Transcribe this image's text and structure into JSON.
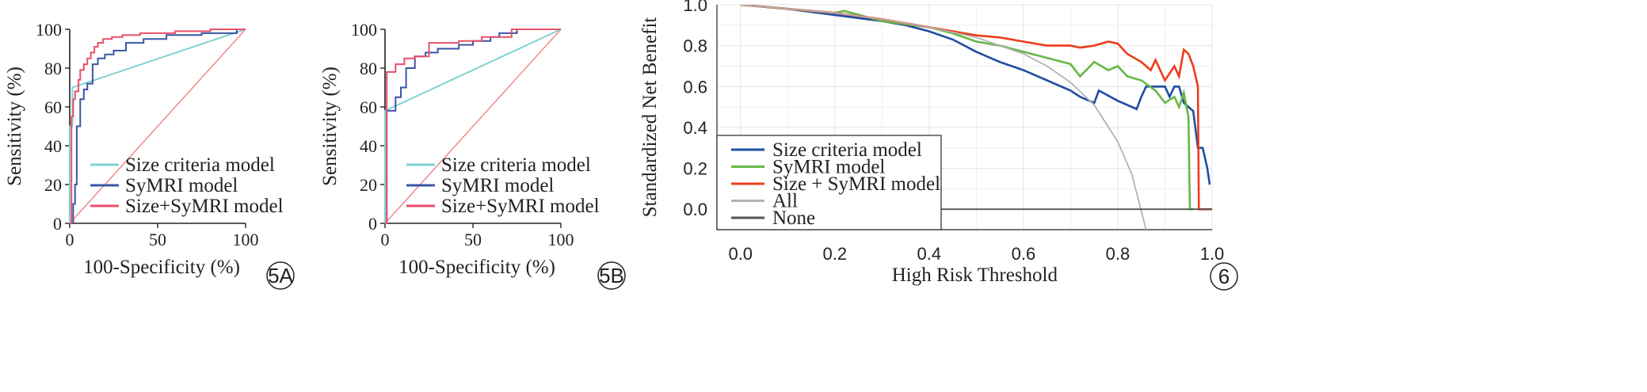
{
  "chart_data": [
    {
      "type": "line",
      "panel_label": "5A",
      "xlabel": "100-Specificity (%)",
      "ylabel": "Sensitivity (%)",
      "xlim": [
        0,
        100
      ],
      "ylim": [
        0,
        100
      ],
      "xticks": [
        "0",
        "50",
        "100"
      ],
      "yticks": [
        "0",
        "20",
        "40",
        "60",
        "80",
        "100"
      ],
      "legend_position": "bottom-right",
      "colors": {
        "reference": "#f08a8a"
      },
      "series": [
        {
          "name": "Size criteria model",
          "color": "#7fd3d3",
          "x": [
            0,
            0,
            1.5,
            1.5,
            100
          ],
          "y": [
            0,
            50,
            50,
            70,
            100
          ],
          "step": false
        },
        {
          "name": "SyMRI model",
          "color": "#3a56a6",
          "x": [
            0,
            2,
            2,
            3,
            3,
            4,
            4,
            6,
            6,
            8,
            8,
            10,
            10,
            13,
            13,
            16,
            16,
            20,
            20,
            25,
            25,
            32,
            32,
            42,
            42,
            55,
            55,
            75,
            75,
            95,
            95,
            100
          ],
          "y": [
            0,
            0,
            10,
            10,
            20,
            20,
            50,
            50,
            64,
            64,
            69,
            69,
            72,
            72,
            82,
            82,
            85,
            85,
            87,
            87,
            89,
            89,
            93,
            93,
            95,
            95,
            97,
            97,
            98,
            98,
            100,
            100
          ],
          "step": true
        },
        {
          "name": "Size+SyMRI model",
          "color": "#e8506a",
          "x": [
            0,
            1,
            1,
            2,
            2,
            3,
            3,
            5,
            5,
            6,
            6,
            8,
            8,
            10,
            10,
            12,
            12,
            14,
            14,
            16,
            16,
            19,
            19,
            24,
            24,
            30,
            30,
            40,
            40,
            60,
            60,
            80,
            80,
            100
          ],
          "y": [
            0,
            0,
            55,
            55,
            64,
            64,
            68,
            68,
            74,
            74,
            79,
            79,
            82,
            82,
            85,
            85,
            88,
            88,
            91,
            91,
            93,
            93,
            95,
            95,
            96,
            96,
            97,
            97,
            98,
            98,
            99,
            99,
            100,
            100
          ],
          "step": true
        }
      ]
    },
    {
      "type": "line",
      "panel_label": "5B",
      "xlabel": "100-Specificity (%)",
      "ylabel": "Sensitivity (%)",
      "xlim": [
        0,
        100
      ],
      "ylim": [
        0,
        100
      ],
      "xticks": [
        "0",
        "50",
        "100"
      ],
      "yticks": [
        "0",
        "20",
        "40",
        "60",
        "80",
        "100"
      ],
      "legend_position": "bottom-right",
      "colors": {
        "reference": "#f08a8a"
      },
      "series": [
        {
          "name": "Size criteria model",
          "color": "#7fd3d3",
          "x": [
            0,
            0,
            100
          ],
          "y": [
            0,
            58,
            100
          ],
          "step": false
        },
        {
          "name": "SyMRI model",
          "color": "#3a56a6",
          "x": [
            0,
            1,
            1,
            6,
            6,
            9,
            9,
            12,
            12,
            17,
            17,
            23,
            23,
            30,
            30,
            42,
            42,
            50,
            50,
            60,
            60,
            65,
            65,
            75,
            75,
            100
          ],
          "y": [
            0,
            0,
            58,
            58,
            65,
            65,
            70,
            70,
            80,
            80,
            86,
            86,
            88,
            88,
            90,
            90,
            92,
            92,
            94,
            94,
            96,
            96,
            98,
            98,
            100,
            100
          ],
          "step": true
        },
        {
          "name": "Size+SyMRI model",
          "color": "#e8506a",
          "x": [
            0,
            1,
            1,
            6,
            6,
            11,
            11,
            17,
            17,
            25,
            25,
            42,
            42,
            55,
            55,
            72,
            72,
            100
          ],
          "y": [
            0,
            0,
            78,
            78,
            82,
            82,
            85,
            85,
            86,
            86,
            93,
            93,
            94,
            94,
            96,
            96,
            100,
            100
          ],
          "step": true
        }
      ]
    },
    {
      "type": "line",
      "panel_label": "6",
      "xlabel": "High Risk Threshold",
      "ylabel": "Standardized Net Benefit",
      "xlim": [
        -0.05,
        1.0
      ],
      "ylim": [
        -0.1,
        1.0
      ],
      "xticks": [
        "0.0",
        "0.2",
        "0.4",
        "0.6",
        "0.8",
        "1.0"
      ],
      "yticks": [
        "0.0",
        "0.2",
        "0.4",
        "0.6",
        "0.8",
        "1.0"
      ],
      "grid": true,
      "legend_position": "bottom-left",
      "series": [
        {
          "name": "Size criteria model",
          "color": "#1f4ea3",
          "x": [
            0,
            0.1,
            0.2,
            0.3,
            0.35,
            0.4,
            0.45,
            0.5,
            0.55,
            0.6,
            0.65,
            0.7,
            0.72,
            0.75,
            0.76,
            0.8,
            0.84,
            0.85,
            0.86,
            0.9,
            0.91,
            0.92,
            0.93,
            0.94,
            0.96,
            0.97,
            0.98,
            0.99,
            0.995
          ],
          "y": [
            1.0,
            0.98,
            0.95,
            0.92,
            0.9,
            0.87,
            0.83,
            0.77,
            0.72,
            0.68,
            0.63,
            0.58,
            0.55,
            0.52,
            0.58,
            0.53,
            0.49,
            0.55,
            0.6,
            0.6,
            0.55,
            0.6,
            0.6,
            0.52,
            0.48,
            0.3,
            0.3,
            0.2,
            0.12
          ]
        },
        {
          "name": "SyMRI model",
          "color": "#66b845",
          "x": [
            0,
            0.1,
            0.2,
            0.22,
            0.3,
            0.4,
            0.45,
            0.5,
            0.55,
            0.6,
            0.65,
            0.7,
            0.72,
            0.75,
            0.78,
            0.8,
            0.82,
            0.85,
            0.88,
            0.9,
            0.92,
            0.93,
            0.94,
            0.95,
            0.953,
            0.96
          ],
          "y": [
            1.0,
            0.98,
            0.96,
            0.97,
            0.92,
            0.89,
            0.86,
            0.82,
            0.8,
            0.77,
            0.74,
            0.71,
            0.65,
            0.72,
            0.68,
            0.7,
            0.65,
            0.63,
            0.58,
            0.52,
            0.55,
            0.5,
            0.57,
            0.45,
            0.0,
            0.0
          ]
        },
        {
          "name": "Size + SyMRI model",
          "color": "#ee3b1c",
          "x": [
            0,
            0.1,
            0.2,
            0.3,
            0.4,
            0.5,
            0.55,
            0.6,
            0.65,
            0.7,
            0.72,
            0.75,
            0.78,
            0.8,
            0.82,
            0.85,
            0.87,
            0.88,
            0.9,
            0.92,
            0.93,
            0.94,
            0.95,
            0.96,
            0.97,
            0.972,
            1.0
          ],
          "y": [
            1.0,
            0.98,
            0.96,
            0.93,
            0.89,
            0.85,
            0.84,
            0.82,
            0.8,
            0.8,
            0.79,
            0.8,
            0.82,
            0.81,
            0.76,
            0.72,
            0.68,
            0.73,
            0.63,
            0.7,
            0.65,
            0.78,
            0.76,
            0.7,
            0.6,
            0.0,
            0.0
          ]
        },
        {
          "name": "All",
          "color": "#b3b3b3",
          "x": [
            0,
            0.1,
            0.2,
            0.3,
            0.4,
            0.5,
            0.6,
            0.65,
            0.7,
            0.75,
            0.8,
            0.83,
            0.86
          ],
          "y": [
            1.0,
            0.98,
            0.96,
            0.93,
            0.89,
            0.84,
            0.76,
            0.7,
            0.62,
            0.51,
            0.33,
            0.17,
            -0.1
          ]
        },
        {
          "name": "None",
          "color": "#555555",
          "x": [
            0.0,
            1.0
          ],
          "y": [
            0.0,
            0.0
          ]
        }
      ]
    }
  ]
}
